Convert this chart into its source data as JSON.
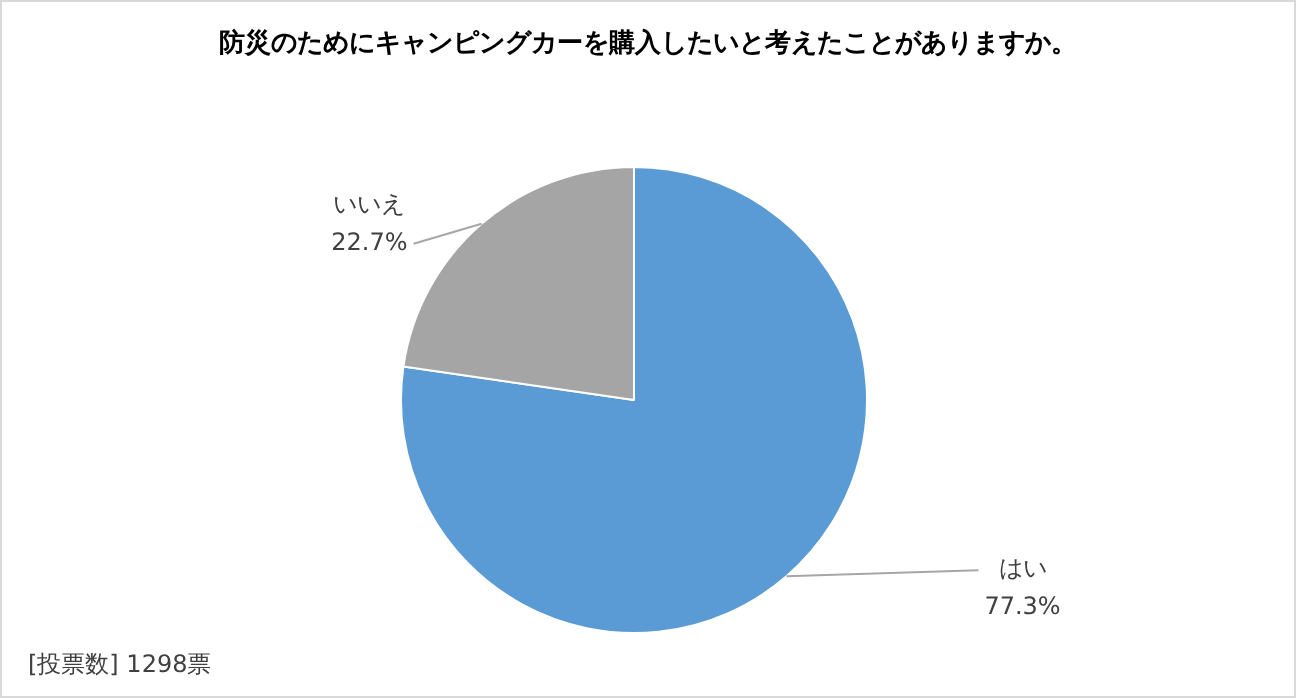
{
  "chart_data": {
    "type": "pie",
    "title": "防災のためにキャンピングカーを購入したいと考えたことがありますか。",
    "categories": [
      "はい",
      "いいえ"
    ],
    "values": [
      77.3,
      22.7
    ],
    "colors": [
      "#5b9bd5",
      "#a5a5a5"
    ],
    "value_labels": [
      "77.3%",
      "22.7%"
    ],
    "annotations": [
      "[投票数] 1298票"
    ]
  }
}
